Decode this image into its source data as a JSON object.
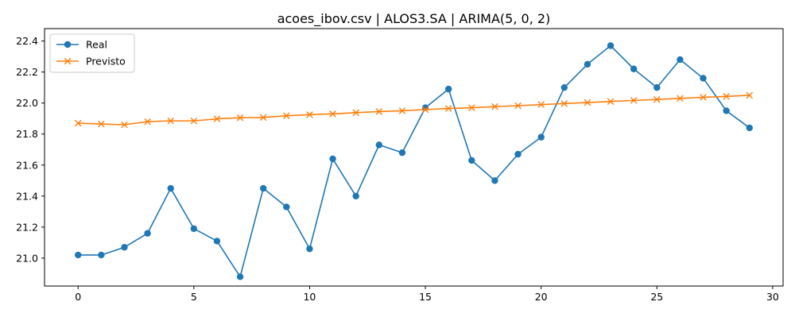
{
  "chart_data": {
    "type": "line",
    "title": "acoes_ibov.csv | ALOS3.SA | ARIMA(5, 0, 2)",
    "xlabel": "",
    "ylabel": "",
    "xlim": [
      -1.45,
      30.45
    ],
    "ylim": [
      20.82,
      22.48
    ],
    "xticks": [
      0,
      5,
      10,
      15,
      20,
      25,
      30
    ],
    "yticks": [
      21.0,
      21.2,
      21.4,
      21.6,
      21.8,
      22.0,
      22.2,
      22.4
    ],
    "xtick_labels": [
      "0",
      "5",
      "10",
      "15",
      "20",
      "25",
      "30"
    ],
    "ytick_labels": [
      "21.0",
      "21.2",
      "21.4",
      "21.6",
      "21.8",
      "22.0",
      "22.2",
      "22.4"
    ],
    "grid": false,
    "legend_position": "top-left",
    "x": [
      0,
      1,
      2,
      3,
      4,
      5,
      6,
      7,
      8,
      9,
      10,
      11,
      12,
      13,
      14,
      15,
      16,
      17,
      18,
      19,
      20,
      21,
      22,
      23,
      24,
      25,
      26,
      27,
      28,
      29
    ],
    "series": [
      {
        "name": "Real",
        "color": "#1f77b4",
        "marker": "circle",
        "values": [
          21.02,
          21.02,
          21.07,
          21.16,
          21.45,
          21.19,
          21.11,
          20.88,
          21.45,
          21.33,
          21.06,
          21.64,
          21.4,
          21.73,
          21.68,
          21.97,
          22.09,
          21.63,
          21.5,
          21.67,
          21.78,
          22.1,
          22.25,
          22.37,
          22.22,
          22.1,
          22.28,
          22.16,
          21.95,
          21.84
        ]
      },
      {
        "name": "Previsto",
        "color": "#ff7f0e",
        "marker": "x",
        "values": [
          21.87,
          21.865,
          21.86,
          21.88,
          21.885,
          21.885,
          21.898,
          21.905,
          21.907,
          21.918,
          21.925,
          21.93,
          21.938,
          21.945,
          21.95,
          21.958,
          21.965,
          21.97,
          21.977,
          21.983,
          21.99,
          21.997,
          22.003,
          22.01,
          22.017,
          22.023,
          22.03,
          22.037,
          22.043,
          22.05
        ]
      }
    ]
  }
}
